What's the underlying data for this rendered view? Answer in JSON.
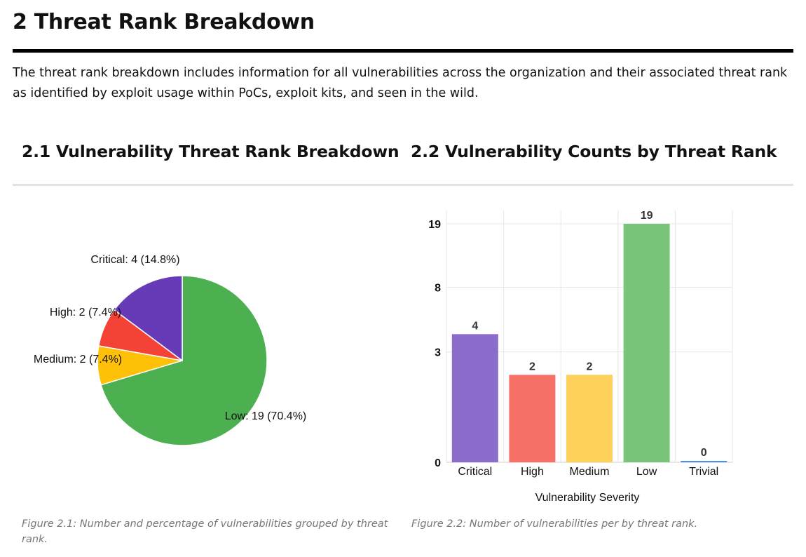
{
  "section": {
    "title": "2 Threat Rank Breakdown",
    "intro": "The threat rank breakdown includes information for all vulnerabilities across the organization and their associated threat rank as identified by exploit usage within PoCs, exploit kits, and seen in the wild."
  },
  "pie_section": {
    "heading": "2.1 Vulnerability Threat Rank Breakdown",
    "caption": "Figure 2.1: Number and percentage of vulnerabilities grouped by threat rank."
  },
  "bar_section": {
    "heading": "2.2 Vulnerability Counts by Threat Rank",
    "caption": "Figure 2.2: Number of vulnerabilities per by threat rank."
  },
  "chart_data": [
    {
      "type": "pie",
      "slices": [
        {
          "name": "Low",
          "value": 19,
          "percent": "70.4%",
          "label": "Low: 19 (70.4%)",
          "color": "#4caf50"
        },
        {
          "name": "Medium",
          "value": 2,
          "percent": "7.4%",
          "label": "Medium: 2 (7.4%)",
          "color": "#ffc107"
        },
        {
          "name": "High",
          "value": 2,
          "percent": "7.4%",
          "label": "High: 2 (7.4%)",
          "color": "#f44336"
        },
        {
          "name": "Critical",
          "value": 4,
          "percent": "14.8%",
          "label": "Critical: 4 (14.8%)",
          "color": "#673ab7"
        }
      ],
      "start": "12 o'clock",
      "direction": "clockwise"
    },
    {
      "type": "bar",
      "categories": [
        "Critical",
        "High",
        "Medium",
        "Low",
        "Trivial"
      ],
      "values": [
        4,
        2,
        2,
        19,
        0
      ],
      "colors": [
        "#8c6ccb",
        "#f87169",
        "#fed25a",
        "#78c57a",
        "#4a90e2"
      ],
      "xlabel": "Vulnerability Severity",
      "ylabel": "",
      "y_scale": "log1p",
      "y_ticks": [
        0,
        3,
        8,
        19
      ],
      "ylim": [
        0,
        19
      ],
      "grid": true
    }
  ]
}
